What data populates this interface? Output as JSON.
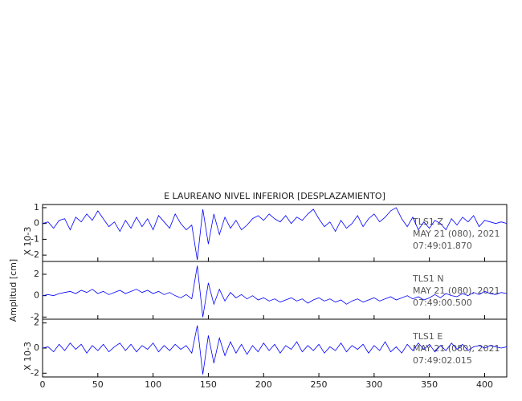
{
  "chart_data": [
    {
      "type": "line",
      "title": "E LAUREANO NIVEL INFERIOR [DESPLAZAMIENTO]",
      "scale_label": "X 10-3",
      "annotations": [
        "TLS1   Z",
        "MAY 21 (080), 2021",
        "07:49:01.870"
      ],
      "xlim": [
        0,
        420
      ],
      "xticks": [
        0,
        50,
        100,
        150,
        200,
        250,
        300,
        350,
        400
      ],
      "ylim": [
        -2.4,
        1.2
      ],
      "yticks": [
        1,
        0,
        -1,
        -2
      ],
      "x": [
        0,
        5,
        10,
        15,
        20,
        25,
        30,
        35,
        40,
        45,
        50,
        55,
        60,
        65,
        70,
        75,
        80,
        85,
        90,
        95,
        100,
        105,
        110,
        115,
        120,
        125,
        130,
        135,
        140,
        145,
        150,
        155,
        160,
        165,
        170,
        175,
        180,
        185,
        190,
        195,
        200,
        205,
        210,
        215,
        220,
        225,
        230,
        235,
        240,
        245,
        250,
        255,
        260,
        265,
        270,
        275,
        280,
        285,
        290,
        295,
        300,
        305,
        310,
        315,
        320,
        325,
        330,
        335,
        340,
        345,
        350,
        355,
        360,
        365,
        370,
        375,
        380,
        385,
        390,
        395,
        400,
        405,
        410,
        415,
        420
      ],
      "series": [
        {
          "color": "#0000ff",
          "values": [
            0,
            0.1,
            -0.3,
            0.2,
            0.3,
            -0.4,
            0.4,
            0.1,
            0.6,
            0.2,
            0.8,
            0.3,
            -0.2,
            0.1,
            -0.5,
            0.2,
            -0.3,
            0.4,
            -0.2,
            0.3,
            -0.4,
            0.5,
            0.1,
            -0.3,
            0.6,
            0.0,
            -0.4,
            -0.1,
            -2.3,
            0.9,
            -1.3,
            0.6,
            -0.7,
            0.4,
            -0.3,
            0.2,
            -0.4,
            -0.1,
            0.3,
            0.5,
            0.2,
            0.6,
            0.3,
            0.1,
            0.5,
            0.0,
            0.4,
            0.2,
            0.6,
            0.9,
            0.3,
            -0.2,
            0.1,
            -0.5,
            0.2,
            -0.3,
            0.0,
            0.5,
            -0.2,
            0.3,
            0.6,
            0.1,
            0.4,
            0.8,
            1.0,
            0.3,
            -0.2,
            0.4,
            -0.4,
            0.1,
            -0.3,
            0.2,
            0.0,
            -0.4,
            0.3,
            -0.1,
            0.4,
            0.1,
            0.5,
            -0.2,
            0.2,
            0.1,
            0.0,
            0.1,
            0.0
          ]
        }
      ]
    },
    {
      "type": "line",
      "ylabel": "Amplitud [cm]",
      "annotations": [
        "TLS1   N",
        "MAY 21 (080), 2021",
        "07:49:00.500"
      ],
      "xlim": [
        0,
        420
      ],
      "xticks": [
        0,
        50,
        100,
        150,
        200,
        250,
        300,
        350,
        400
      ],
      "ylim": [
        -2.2,
        3.2
      ],
      "yticks": [
        2,
        0,
        -2
      ],
      "x": [
        0,
        5,
        10,
        15,
        20,
        25,
        30,
        35,
        40,
        45,
        50,
        55,
        60,
        65,
        70,
        75,
        80,
        85,
        90,
        95,
        100,
        105,
        110,
        115,
        120,
        125,
        130,
        135,
        140,
        145,
        150,
        155,
        160,
        165,
        170,
        175,
        180,
        185,
        190,
        195,
        200,
        205,
        210,
        215,
        220,
        225,
        230,
        235,
        240,
        245,
        250,
        255,
        260,
        265,
        270,
        275,
        280,
        285,
        290,
        295,
        300,
        305,
        310,
        315,
        320,
        325,
        330,
        335,
        340,
        345,
        350,
        355,
        360,
        365,
        370,
        375,
        380,
        385,
        390,
        395,
        400,
        405,
        410,
        415,
        420
      ],
      "series": [
        {
          "color": "#0000ff",
          "values": [
            0,
            0.1,
            0,
            0.2,
            0.3,
            0.4,
            0.2,
            0.5,
            0.3,
            0.6,
            0.2,
            0.4,
            0.1,
            0.3,
            0.5,
            0.2,
            0.4,
            0.6,
            0.3,
            0.5,
            0.2,
            0.4,
            0.1,
            0.3,
            0.0,
            -0.2,
            0.1,
            -0.3,
            2.8,
            -2.0,
            1.2,
            -0.8,
            0.6,
            -0.5,
            0.3,
            -0.2,
            0.1,
            -0.3,
            0.0,
            -0.4,
            -0.2,
            -0.5,
            -0.3,
            -0.6,
            -0.4,
            -0.2,
            -0.5,
            -0.3,
            -0.7,
            -0.4,
            -0.2,
            -0.5,
            -0.3,
            -0.6,
            -0.4,
            -0.8,
            -0.5,
            -0.3,
            -0.6,
            -0.4,
            -0.2,
            -0.5,
            -0.3,
            -0.1,
            -0.4,
            -0.2,
            0.0,
            -0.3,
            -0.1,
            -0.4,
            -0.2,
            0.1,
            -0.2,
            0.2,
            0.0,
            -0.1,
            0.2,
            0.0,
            0.3,
            0.1,
            0.4,
            0.2,
            0.1,
            0.3,
            0.2
          ]
        }
      ]
    },
    {
      "type": "line",
      "scale_label": "X 10-3",
      "annotations": [
        "TLS1   E",
        "MAY 21 (080), 2021",
        "07:49:02.015"
      ],
      "xlim": [
        0,
        420
      ],
      "xticks": [
        0,
        50,
        100,
        150,
        200,
        250,
        300,
        350,
        400
      ],
      "ylim": [
        -2.3,
        2.3
      ],
      "yticks": [
        2,
        0,
        -2
      ],
      "x": [
        0,
        5,
        10,
        15,
        20,
        25,
        30,
        35,
        40,
        45,
        50,
        55,
        60,
        65,
        70,
        75,
        80,
        85,
        90,
        95,
        100,
        105,
        110,
        115,
        120,
        125,
        130,
        135,
        140,
        145,
        150,
        155,
        160,
        165,
        170,
        175,
        180,
        185,
        190,
        195,
        200,
        205,
        210,
        215,
        220,
        225,
        230,
        235,
        240,
        245,
        250,
        255,
        260,
        265,
        270,
        275,
        280,
        285,
        290,
        295,
        300,
        305,
        310,
        315,
        320,
        325,
        330,
        335,
        340,
        345,
        350,
        355,
        360,
        365,
        370,
        375,
        380,
        385,
        390,
        395,
        400,
        405,
        410,
        415,
        420
      ],
      "series": [
        {
          "color": "#0000ff",
          "values": [
            0,
            0.1,
            -0.3,
            0.3,
            -0.2,
            0.4,
            -0.1,
            0.3,
            -0.4,
            0.2,
            -0.2,
            0.3,
            -0.3,
            0.1,
            0.4,
            -0.2,
            0.3,
            -0.3,
            0.2,
            -0.1,
            0.4,
            -0.3,
            0.2,
            -0.2,
            0.3,
            -0.1,
            0.2,
            -0.4,
            1.8,
            -2.1,
            1.0,
            -1.2,
            0.8,
            -0.6,
            0.5,
            -0.4,
            0.3,
            -0.5,
            0.2,
            -0.3,
            0.4,
            -0.2,
            0.3,
            -0.4,
            0.2,
            -0.1,
            0.5,
            -0.3,
            0.2,
            -0.2,
            0.3,
            -0.4,
            0.1,
            -0.2,
            0.4,
            -0.3,
            0.2,
            -0.1,
            0.3,
            -0.4,
            0.2,
            -0.2,
            0.5,
            -0.3,
            0.1,
            -0.4,
            0.3,
            -0.2,
            0.4,
            -0.1,
            0.3,
            -0.3,
            0.2,
            -0.2,
            0.4,
            -0.1,
            0.3,
            -0.2,
            0.1,
            0.2,
            0.0,
            0.2,
            0.1,
            0.0,
            0.1
          ]
        }
      ]
    }
  ]
}
